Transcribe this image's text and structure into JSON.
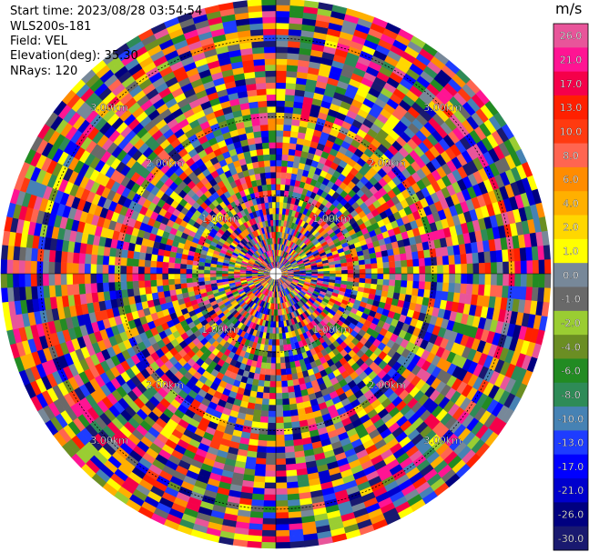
{
  "header": {
    "start_time": "Start time: 2023/08/28 03:54:54",
    "instrument": "WLS200s-181",
    "field": "Field: VEL",
    "elevation": "Elevation(deg): 35.30",
    "nrays": "NRays: 120"
  },
  "chart_data": {
    "type": "heatmap",
    "projection": "polar-ppi",
    "field": "VEL",
    "unit": "m/s",
    "n_rays": 120,
    "elevation_deg": 35.3,
    "ring_labels": [
      "3.00km",
      "2.00km",
      "1.00km"
    ],
    "colorbar": {
      "unit": "m/s",
      "ticks": [
        "26.0",
        "21.0",
        "17.0",
        "13.0",
        "10.0",
        "8.0",
        "6.0",
        "4.0",
        "2.0",
        "1.0",
        "0.0",
        "-1.0",
        "-2.0",
        "-4.0",
        "-6.0",
        "-8.0",
        "-10.0",
        "-13.0",
        "-17.0",
        "-21.0",
        "-26.0",
        "-30.0"
      ],
      "colors": [
        "#e8559a",
        "#ff1493",
        "#f5004a",
        "#ff2000",
        "#ff3a10",
        "#ff6550",
        "#ff8c00",
        "#ffb000",
        "#ffd700",
        "#ffff00",
        "#778899",
        "#696969",
        "#9acd32",
        "#6b8e23",
        "#228b22",
        "#2e8b57",
        "#4682b4",
        "#1e3cff",
        "#0000ff",
        "#0000cd",
        "#000080",
        "#191970"
      ]
    }
  }
}
